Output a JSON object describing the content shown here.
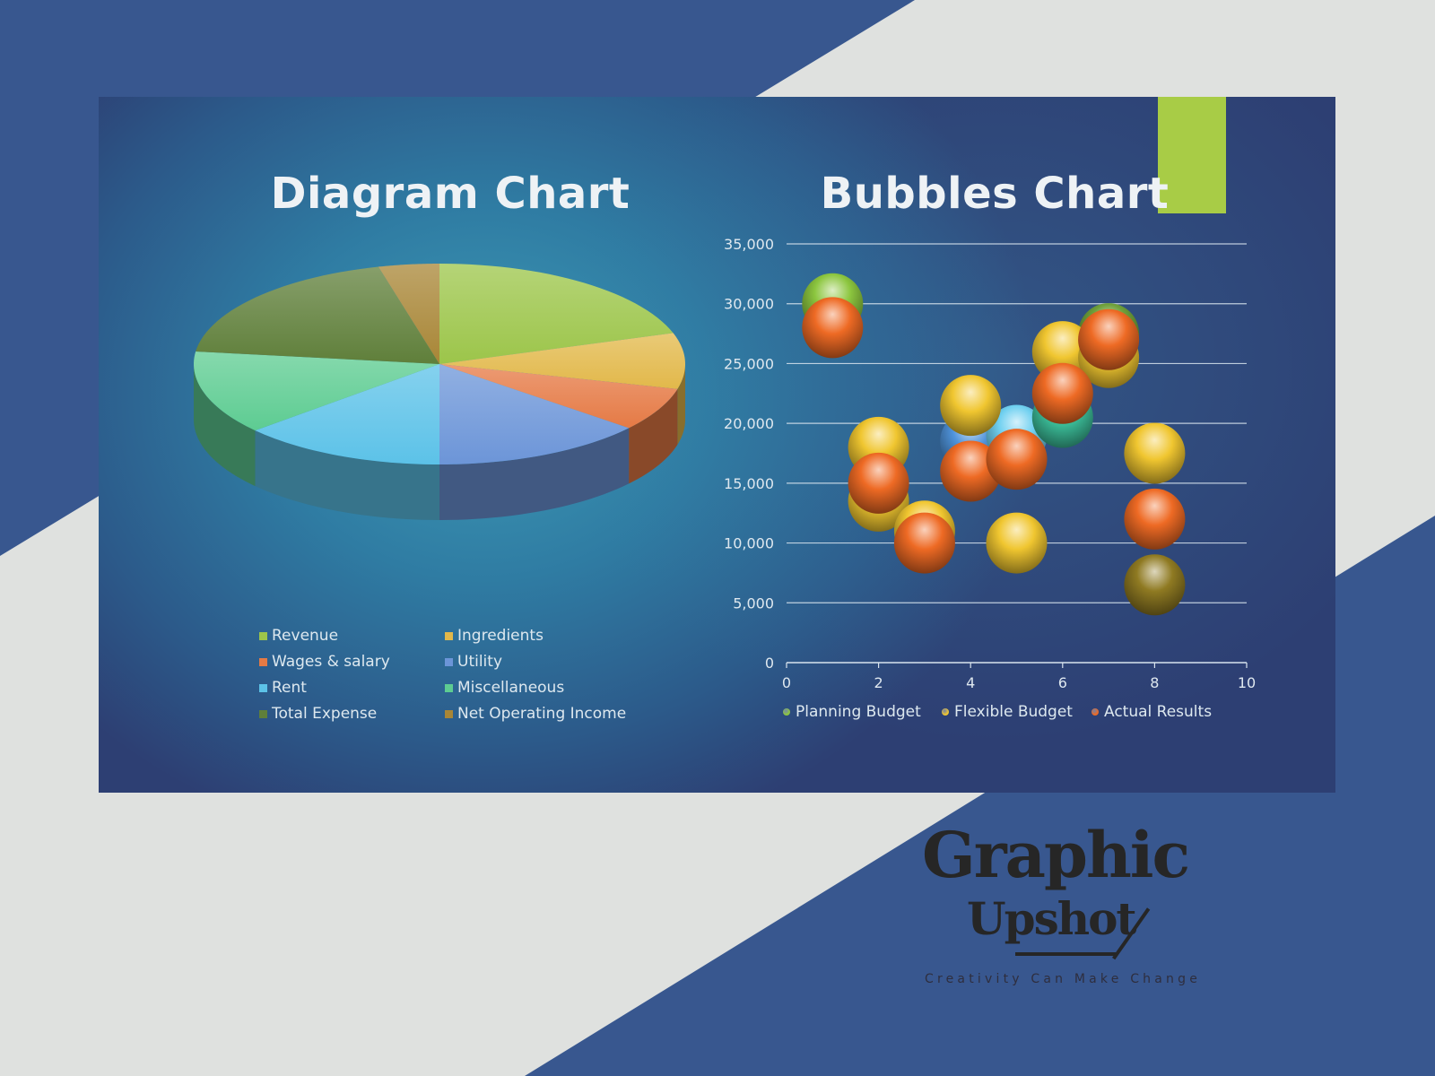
{
  "colors": {
    "background_blue": "#38578f",
    "background_gray": "#dfe1df",
    "accent_green": "#a8cc46"
  },
  "chart_data": [
    {
      "type": "pie",
      "title": "Diagram Chart",
      "style": "3d",
      "legend_position": "bottom",
      "slices": [
        {
          "label": "Revenue",
          "value": 20,
          "color": "#9cc54a"
        },
        {
          "label": "Ingredients",
          "value": 9,
          "color": "#e2b84a"
        },
        {
          "label": "Wages & salary",
          "value": 7,
          "color": "#e57a45"
        },
        {
          "label": "Utility",
          "value": 14,
          "color": "#6c95d8"
        },
        {
          "label": "Rent",
          "value": 13.5,
          "color": "#5cc2e8"
        },
        {
          "label": "Miscellaneous",
          "value": 13.5,
          "color": "#5dcc92"
        },
        {
          "label": "Total Expense",
          "value": 19,
          "color": "#5f7f3a"
        },
        {
          "label": "Net Operating Income",
          "value": 4,
          "color": "#a88636"
        }
      ]
    },
    {
      "type": "scatter",
      "subtype": "bubble",
      "title": "Bubbles Chart",
      "xlim": [
        0,
        10
      ],
      "ylim": [
        0,
        35000
      ],
      "x_ticks": [
        "0",
        "2",
        "4",
        "6",
        "8",
        "10"
      ],
      "y_ticks": [
        "0",
        "5,000",
        "10,000",
        "15,000",
        "20,000",
        "25,000",
        "30,000",
        "35,000"
      ],
      "grid": "horizontal",
      "legend_position": "bottom",
      "series": [
        {
          "name": "Planning Budget",
          "color": "#8cc63f",
          "points": [
            {
              "x": 1,
              "y": 30000,
              "color": "#8cc63f"
            },
            {
              "x": 4,
              "y": 18500,
              "color": "#4f93db"
            },
            {
              "x": 5,
              "y": 19000,
              "color": "#6fd0f0"
            },
            {
              "x": 6,
              "y": 20500,
              "color": "#3cbf9a"
            },
            {
              "x": 7,
              "y": 27500,
              "color": "#6ea03a"
            },
            {
              "x": 8,
              "y": 6500,
              "color": "#8f7a22"
            }
          ]
        },
        {
          "name": "Flexible Budget",
          "color": "#f0c630",
          "points": [
            {
              "x": 2,
              "y": 18000
            },
            {
              "x": 2,
              "y": 13500
            },
            {
              "x": 3,
              "y": 11000
            },
            {
              "x": 4,
              "y": 21500
            },
            {
              "x": 5,
              "y": 10000
            },
            {
              "x": 6,
              "y": 26000
            },
            {
              "x": 7,
              "y": 25500
            },
            {
              "x": 8,
              "y": 17500
            }
          ]
        },
        {
          "name": "Actual Results",
          "color": "#ee6a24",
          "points": [
            {
              "x": 1,
              "y": 28000
            },
            {
              "x": 2,
              "y": 15000
            },
            {
              "x": 3,
              "y": 10000
            },
            {
              "x": 4,
              "y": 16000
            },
            {
              "x": 5,
              "y": 17000
            },
            {
              "x": 6,
              "y": 22500
            },
            {
              "x": 7,
              "y": 27000
            },
            {
              "x": 8,
              "y": 12000
            }
          ]
        }
      ]
    }
  ],
  "logo": {
    "line1": "Graphic",
    "line2": "Upshot",
    "tagline": "Creativity Can Make Change"
  }
}
